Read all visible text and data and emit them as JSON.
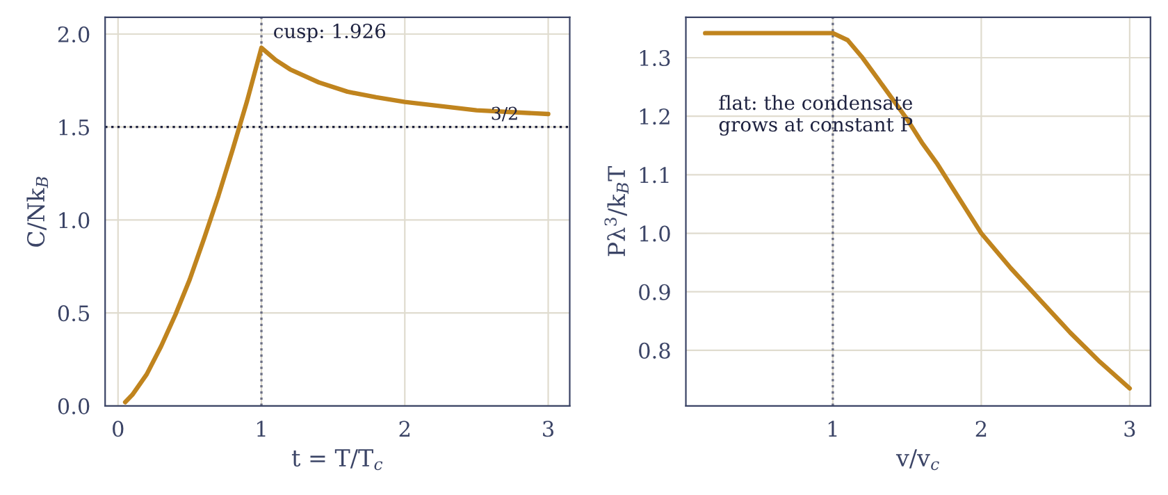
{
  "chart_data": [
    {
      "type": "line",
      "xlabel": "t = T/T$_{c}$",
      "ylabel": "C/Nk$_{B}$",
      "series": [
        {
          "color": "#c0841e",
          "x": [
            0.05,
            0.1,
            0.2,
            0.3,
            0.4,
            0.5,
            0.6,
            0.7,
            0.8,
            0.9,
            1.0,
            1.1,
            1.2,
            1.4,
            1.6,
            1.8,
            2.0,
            2.5,
            3.0
          ],
          "values": [
            0.02,
            0.06,
            0.17,
            0.32,
            0.49,
            0.68,
            0.9,
            1.13,
            1.38,
            1.64,
            1.926,
            1.86,
            1.81,
            1.74,
            1.69,
            1.66,
            1.635,
            1.59,
            1.57
          ]
        }
      ],
      "xlim": [
        -0.09,
        3.15
      ],
      "ylim": [
        0,
        2.09
      ],
      "xticks": [
        0,
        1,
        2,
        3
      ],
      "yticks": [
        {
          "value": 0,
          "label": "0.0"
        },
        0.5,
        {
          "value": 1,
          "label": "1.0"
        },
        1.5,
        {
          "value": 2,
          "label": "2.0"
        }
      ],
      "grid": true,
      "line_style": "solid",
      "marker": "none",
      "ref_lines": [
        {
          "axis": "y",
          "value": 1.5,
          "label": "3/2",
          "color": "#1e2240",
          "line_style": "dotted"
        },
        {
          "axis": "x",
          "value": 1,
          "color": "#6b6f85",
          "line_style": "dotted"
        }
      ],
      "annotations": [
        {
          "text": "cusp: 1.926",
          "x": 1,
          "y": 1.926
        }
      ]
    },
    {
      "type": "line",
      "xlabel": "v/v$_{c}$",
      "ylabel": "Pλ$^{3}$/k$_{B}$T",
      "series": [
        {
          "color": "#c0841e",
          "x": [
            0.14,
            0.5,
            1.0,
            1.1,
            1.2,
            1.3,
            1.4,
            1.5,
            1.6,
            1.7,
            1.8,
            1.9,
            2.0,
            2.2,
            2.4,
            2.6,
            2.8,
            3.0
          ],
          "values": [
            1.342,
            1.342,
            1.342,
            1.33,
            1.3,
            1.265,
            1.23,
            1.195,
            1.155,
            1.12,
            1.08,
            1.04,
            1.0,
            0.94,
            0.885,
            0.83,
            0.78,
            0.735
          ]
        }
      ],
      "xlim": [
        0.01,
        3.14
      ],
      "ylim": [
        0.705,
        1.369
      ],
      "xticks": [
        1,
        2,
        3
      ],
      "yticks": [
        0.8,
        0.9,
        {
          "value": 1,
          "label": "1.0"
        },
        1.1,
        1.2,
        1.3
      ],
      "grid": true,
      "line_style": "solid",
      "marker": "none",
      "ref_lines": [
        {
          "axis": "x",
          "value": 1,
          "color": "#6b6f85",
          "line_style": "dotted"
        }
      ],
      "annotations": [
        "flat: the condensate\ngrows at constant P"
      ]
    }
  ]
}
